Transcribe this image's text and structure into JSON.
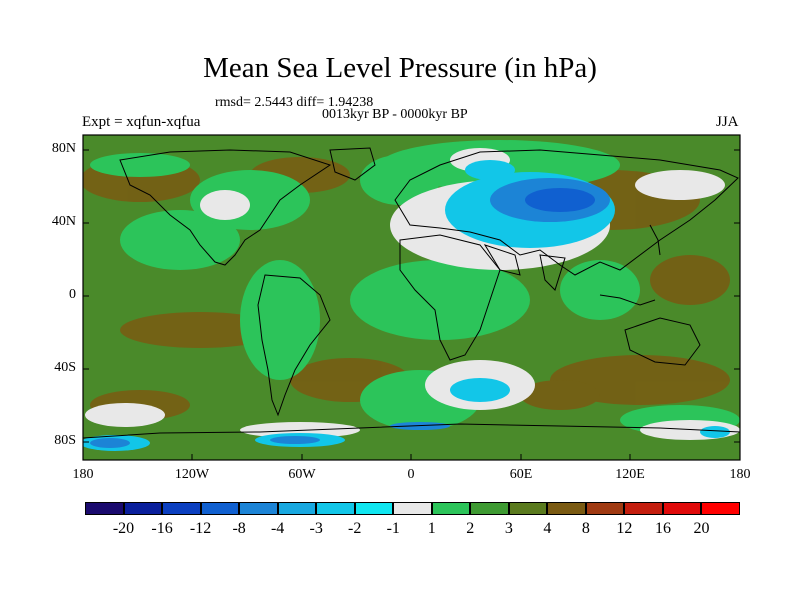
{
  "title": "Mean Sea Level Pressure (in hPa)",
  "stats": "rmsd= 2.5443 diff= 1.94238",
  "period": "0013kyr BP - 0000kyr BP",
  "experiment": "Expt = xqfun-xqfua",
  "season": "JJA",
  "lat_labels": [
    "80N",
    "40N",
    "0",
    "40S",
    "80S"
  ],
  "lon_labels": [
    "180",
    "120W",
    "60W",
    "0",
    "60E",
    "120E",
    "180"
  ],
  "colorbar": {
    "labels": [
      "-20",
      "-16",
      "-12",
      "-8",
      "-4",
      "-3",
      "-2",
      "-1",
      "1",
      "2",
      "3",
      "4",
      "8",
      "12",
      "16",
      "20"
    ],
    "colors": [
      "#1a0a6e",
      "#0a1f9c",
      "#0b3fc0",
      "#1060d0",
      "#1c84d6",
      "#18a8e0",
      "#12c6e8",
      "#10e6f0",
      "#e8e8e8",
      "#2cc45a",
      "#3e9a32",
      "#5a7a1e",
      "#7a5a12",
      "#a03a12",
      "#c41e0e",
      "#e00a0a",
      "#ff0000"
    ]
  },
  "colors": {
    "green": "#2cc45a",
    "olive": "#4a8a2a",
    "brown": "#7a5a12",
    "light": "#e8e8e8",
    "cyan": "#12c6e8",
    "blue": "#1c84d6",
    "darkblue": "#1060d0"
  }
}
